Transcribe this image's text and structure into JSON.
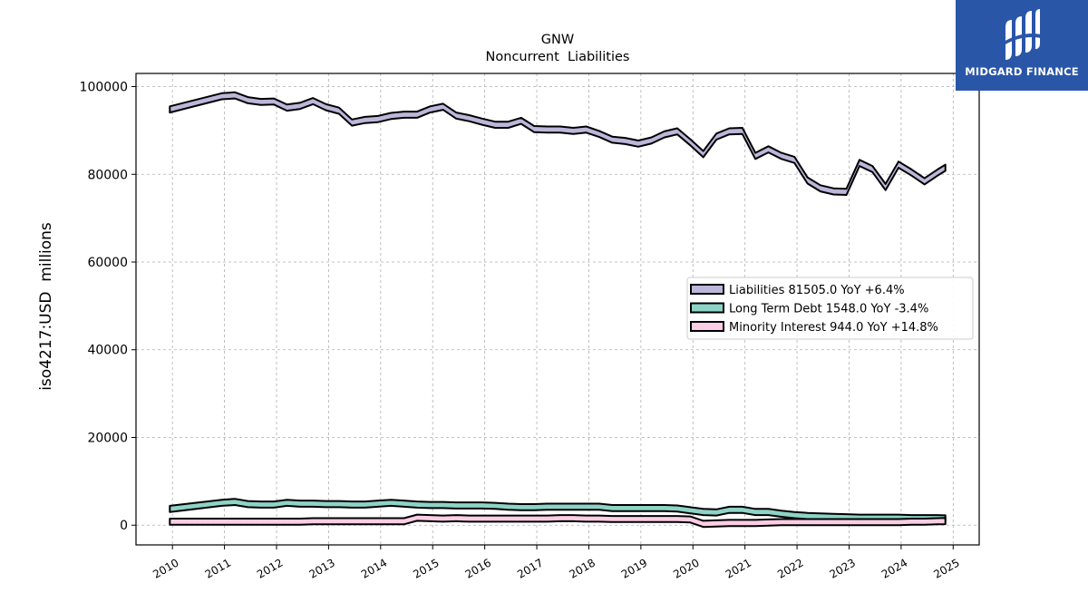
{
  "brand": {
    "name": "MIDGARD FINANCE"
  },
  "chart_data": {
    "type": "area",
    "title": "GNW",
    "subtitle": "Noncurrent  Liabilities",
    "ylabel": "iso4217:USD  millions",
    "xlabel": "",
    "ylim": [
      -4500,
      103000
    ],
    "xlim": [
      2009.3,
      2025.5
    ],
    "grid": true,
    "legend_position": "center-right",
    "y_ticks": [
      0,
      20000,
      40000,
      60000,
      80000,
      100000
    ],
    "x_ticks": [
      2010,
      2011,
      2012,
      2013,
      2014,
      2015,
      2016,
      2017,
      2018,
      2019,
      2020,
      2021,
      2022,
      2023,
      2024,
      2025
    ],
    "x": [
      2009.95,
      2010.95,
      2011.2,
      2011.45,
      2011.7,
      2011.95,
      2012.2,
      2012.45,
      2012.7,
      2012.95,
      2013.2,
      2013.45,
      2013.7,
      2013.95,
      2014.2,
      2014.45,
      2014.7,
      2014.95,
      2015.2,
      2015.45,
      2015.7,
      2015.95,
      2016.2,
      2016.45,
      2016.7,
      2016.95,
      2017.2,
      2017.45,
      2017.7,
      2017.95,
      2018.2,
      2018.45,
      2018.7,
      2018.95,
      2019.2,
      2019.45,
      2019.7,
      2019.95,
      2020.2,
      2020.45,
      2020.7,
      2020.95,
      2021.2,
      2021.45,
      2021.7,
      2021.95,
      2022.2,
      2022.45,
      2022.7,
      2022.95,
      2023.2,
      2023.45,
      2023.7,
      2023.95,
      2024.2,
      2024.45,
      2024.7,
      2024.85
    ],
    "series": [
      {
        "name": "Liabilities",
        "legend": "Liabilities  81505.0 YoY +6.4%",
        "color": "#bcb6da",
        "values": [
          94800,
          97800,
          98000,
          96900,
          96500,
          96600,
          95200,
          95600,
          96700,
          95300,
          94500,
          91800,
          92400,
          92600,
          93300,
          93600,
          93600,
          94800,
          95400,
          93400,
          92800,
          92000,
          91300,
          91300,
          92200,
          90300,
          90200,
          90200,
          89900,
          90200,
          89200,
          87900,
          87600,
          87000,
          87700,
          89100,
          89800,
          87300,
          84600,
          88600,
          89800,
          89900,
          84200,
          85700,
          84200,
          83300,
          78600,
          76800,
          76100,
          76000,
          82600,
          81200,
          77100,
          82200,
          80400,
          78400,
          80400,
          81500
        ]
      },
      {
        "name": "Long Term Debt",
        "legend": "Long Term Debt  1548.0 YoY -3.4%",
        "color": "#8dd3c6",
        "values": [
          3700,
          5100,
          5300,
          4800,
          4700,
          4700,
          5100,
          4900,
          4900,
          4800,
          4800,
          4700,
          4700,
          4900,
          5100,
          4900,
          4700,
          4600,
          4600,
          4500,
          4500,
          4500,
          4400,
          4200,
          4100,
          4100,
          4200,
          4200,
          4200,
          4200,
          4200,
          3900,
          3900,
          3900,
          3900,
          3900,
          3800,
          3400,
          3000,
          2900,
          3500,
          3500,
          3000,
          3000,
          2600,
          2300,
          2100,
          2000,
          1900,
          1800,
          1700,
          1700,
          1700,
          1700,
          1600,
          1600,
          1600,
          1548
        ]
      },
      {
        "name": "Minority Interest",
        "legend": "Minority Interest  944.0 YoY +14.8%",
        "color": "#fbcde4",
        "values": [
          800,
          800,
          800,
          800,
          800,
          800,
          800,
          800,
          900,
          900,
          900,
          900,
          900,
          900,
          900,
          900,
          1700,
          1600,
          1500,
          1600,
          1500,
          1500,
          1500,
          1500,
          1500,
          1500,
          1500,
          1600,
          1600,
          1500,
          1500,
          1400,
          1400,
          1400,
          1400,
          1400,
          1400,
          1300,
          300,
          400,
          500,
          500,
          500,
          600,
          700,
          700,
          700,
          700,
          700,
          700,
          700,
          700,
          700,
          700,
          800,
          800,
          900,
          944
        ]
      }
    ]
  }
}
